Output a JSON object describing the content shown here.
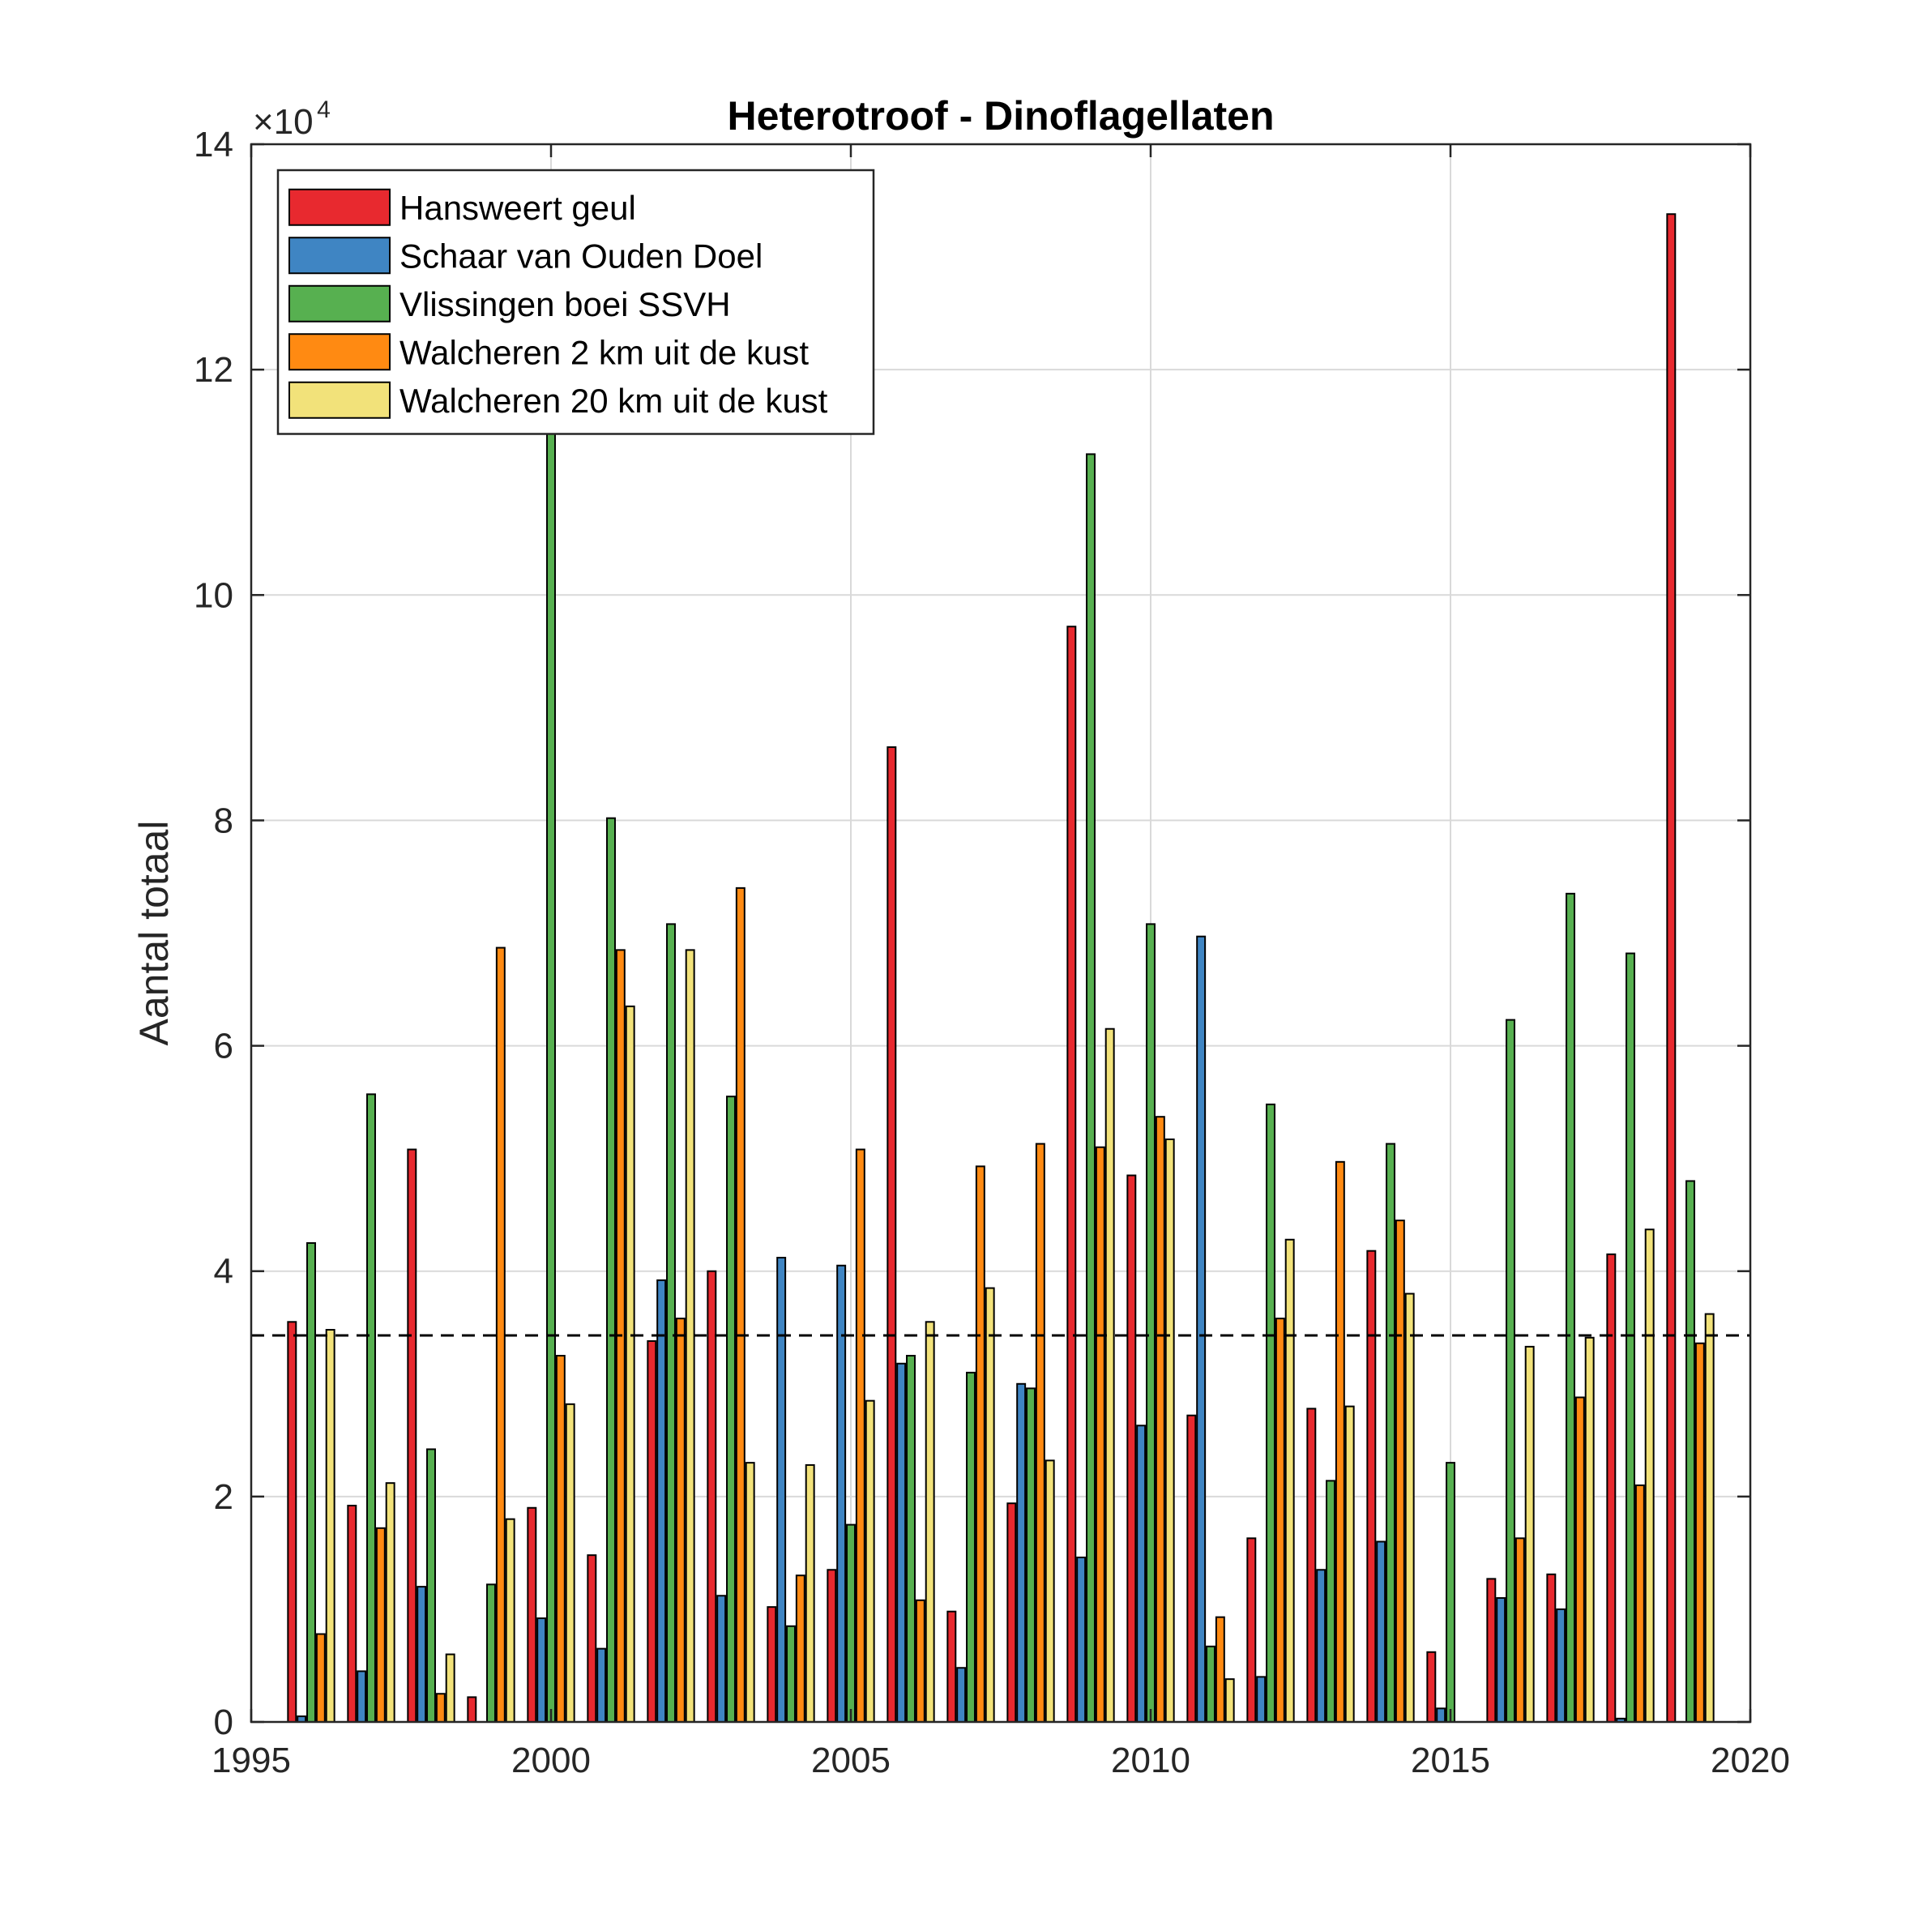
{
  "colors": {
    "Hansweert geul": "#e8292f",
    "Schaar van Ouden Doel": "#3f85c3",
    "Vlissingen boei SSVH": "#57b050",
    "Walcheren 2 km uit de kust": "#ff8a12",
    "Walcheren 20 km uit de kust": "#f2e27a",
    "grid": "#d9d9d9",
    "axis": "#262626",
    "reference_line": "#000000"
  },
  "chart_data": {
    "type": "bar",
    "title": "Heterotroof - Dinoflagellaten",
    "xlabel": "",
    "ylabel": "Aantal totaal",
    "y_exponent_label": {
      "base": "×10",
      "power": "4"
    },
    "xlim": [
      1995,
      2020
    ],
    "ylim": [
      0,
      14
    ],
    "y_multiplier": 10000,
    "xticks": [
      "1995",
      "2000",
      "2005",
      "2010",
      "2015",
      "2020"
    ],
    "yticks": [
      "0",
      "2",
      "4",
      "6",
      "8",
      "10",
      "12",
      "14"
    ],
    "grid": true,
    "legend_position": "top-left",
    "reference_line": 3.43,
    "categories": [
      1996,
      1997,
      1998,
      1999,
      2000,
      2001,
      2002,
      2003,
      2004,
      2005,
      2006,
      2007,
      2008,
      2009,
      2010,
      2011,
      2012,
      2013,
      2014,
      2015,
      2016,
      2017,
      2018,
      2019
    ],
    "series": [
      {
        "name": "Hansweert geul",
        "values": [
          3.55,
          1.92,
          5.08,
          0.22,
          1.9,
          1.48,
          3.38,
          4.0,
          1.02,
          1.35,
          8.65,
          0.98,
          1.94,
          9.72,
          4.85,
          2.72,
          1.63,
          2.78,
          4.18,
          0.62,
          1.27,
          1.31,
          4.15,
          13.38
        ]
      },
      {
        "name": "Schaar van Ouden Doel",
        "values": [
          0.05,
          0.45,
          1.2,
          0,
          0.92,
          0.65,
          3.92,
          1.12,
          4.12,
          4.05,
          3.18,
          0.48,
          3.0,
          1.46,
          2.63,
          6.97,
          0.4,
          1.35,
          1.6,
          0.12,
          1.1,
          1.0,
          0.03,
          0
        ]
      },
      {
        "name": "Vlissingen boei SSVH",
        "values": [
          4.25,
          5.57,
          2.42,
          1.22,
          11.8,
          8.02,
          7.08,
          5.55,
          0.85,
          1.75,
          3.25,
          3.1,
          2.96,
          11.25,
          7.08,
          0.67,
          5.48,
          2.14,
          5.13,
          2.3,
          6.23,
          7.35,
          6.82,
          4.8
        ]
      },
      {
        "name": "Walcheren 2 km uit de kust",
        "values": [
          0.78,
          1.72,
          0.25,
          6.87,
          3.25,
          6.85,
          3.58,
          7.4,
          1.3,
          5.08,
          1.08,
          4.93,
          5.13,
          5.1,
          5.37,
          0.93,
          3.58,
          4.97,
          4.45,
          0,
          1.63,
          2.88,
          2.1,
          3.36
        ]
      },
      {
        "name": "Walcheren 20 km uit de kust",
        "values": [
          3.48,
          2.12,
          0.6,
          1.8,
          2.82,
          6.35,
          6.85,
          2.3,
          2.28,
          2.85,
          3.55,
          3.85,
          2.32,
          6.15,
          5.17,
          0.38,
          4.28,
          2.8,
          3.8,
          0,
          3.33,
          3.41,
          4.37,
          3.62
        ]
      }
    ]
  }
}
